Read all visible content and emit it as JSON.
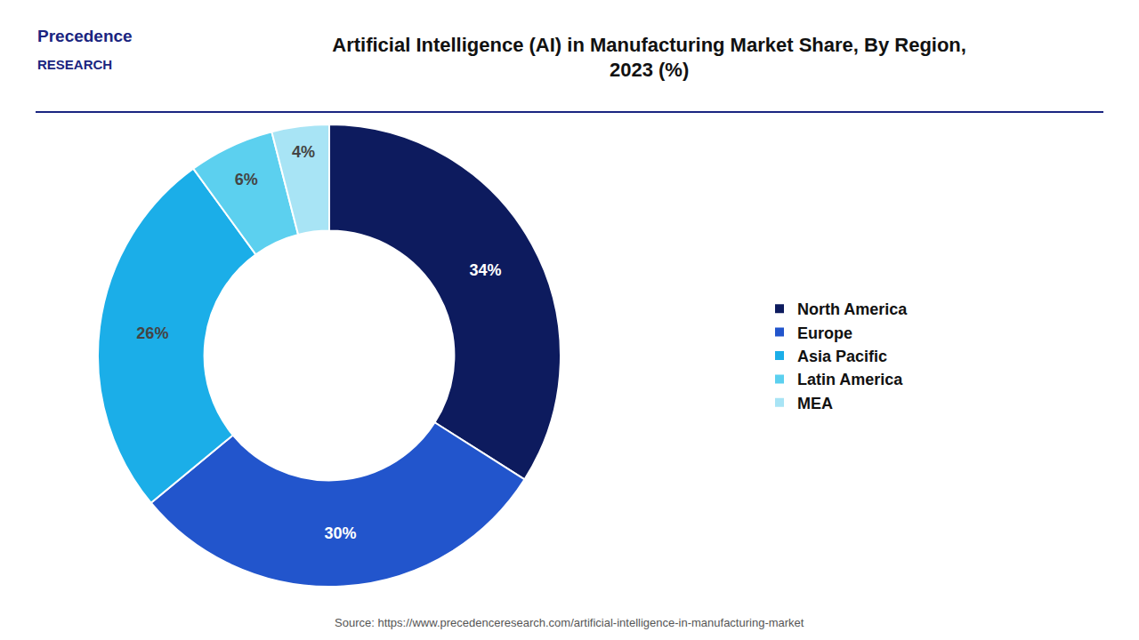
{
  "chart_data": {
    "type": "donut",
    "title": "Artificial Intelligence (AI) in Manufacturing Market Share, By Region,\n2023 (%)",
    "categories": [
      "North America",
      "Europe",
      "Asia Pacific",
      "Latin America",
      "MEA"
    ],
    "values": [
      34,
      30,
      26,
      6,
      4
    ],
    "value_labels": [
      "34%",
      "30%",
      "26%",
      "6%",
      "4%"
    ],
    "colors": [
      "#0d1b5e",
      "#2255cc",
      "#1baee8",
      "#5cd0ef",
      "#a8e4f5"
    ],
    "data_labels": true,
    "legend": "right",
    "annotations": [
      "Precedence",
      "RESEARCH",
      "Source: https://www.precedenceresearch.com/artificial-intelligence-in-manufacturing-market"
    ]
  }
}
